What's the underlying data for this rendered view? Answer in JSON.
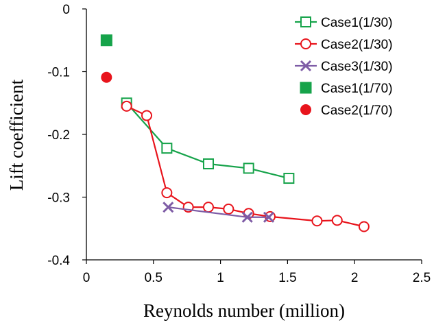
{
  "chart_data": {
    "type": "scatter",
    "xlabel": "Reynolds number (million)",
    "ylabel": "Lift coefficient",
    "xlim": [
      0,
      2.5
    ],
    "ylim": [
      -0.4,
      0
    ],
    "xticks": [
      "0",
      "0.5",
      "1",
      "1.5",
      "2",
      "2.5"
    ],
    "yticks": [
      "0",
      "-0.1",
      "-0.2",
      "-0.3",
      "-0.4"
    ],
    "grid": false,
    "legend_position": "top-right",
    "series": [
      {
        "name": "Case1(1/30)",
        "marker": "square-open",
        "line": true,
        "color": "#16a34a",
        "x": [
          0.3,
          0.6,
          0.91,
          1.21,
          1.51
        ],
        "y": [
          -0.15,
          -0.222,
          -0.247,
          -0.254,
          -0.27
        ]
      },
      {
        "name": "Case2(1/30)",
        "marker": "circle-open",
        "line": true,
        "color": "#e8141c",
        "x": [
          0.3,
          0.45,
          0.6,
          0.76,
          0.91,
          1.06,
          1.21,
          1.37,
          1.72,
          1.87,
          2.07
        ],
        "y": [
          -0.155,
          -0.17,
          -0.293,
          -0.316,
          -0.316,
          -0.319,
          -0.326,
          -0.331,
          -0.338,
          -0.337,
          -0.347
        ]
      },
      {
        "name": "Case3(1/30)",
        "marker": "x",
        "line": true,
        "color": "#7e5ca6",
        "x": [
          0.61,
          1.2,
          1.36
        ],
        "y": [
          -0.316,
          -0.332,
          -0.332
        ]
      },
      {
        "name": "Case1(1/70)",
        "marker": "square-filled",
        "line": false,
        "color": "#16a34a",
        "x": [
          0.15
        ],
        "y": [
          -0.05
        ]
      },
      {
        "name": "Case2(1/70)",
        "marker": "circle-filled",
        "line": false,
        "color": "#e8141c",
        "x": [
          0.15
        ],
        "y": [
          -0.109
        ]
      }
    ]
  }
}
